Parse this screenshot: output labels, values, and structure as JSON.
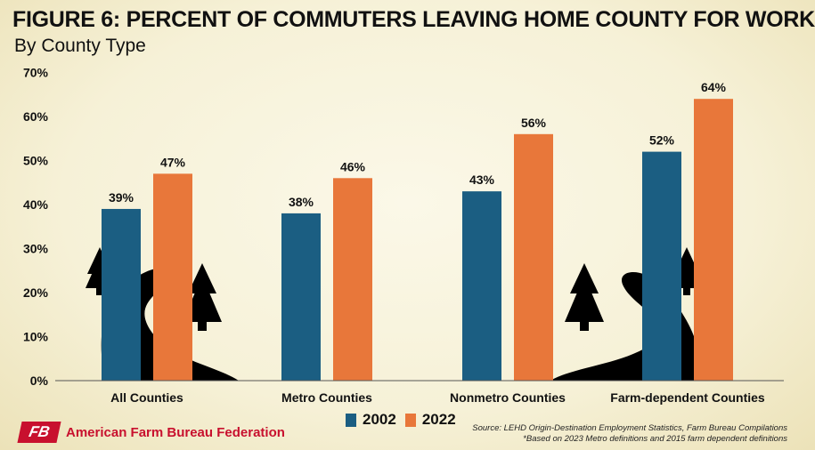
{
  "header": {
    "title": "FIGURE 6: PERCENT OF COMMUTERS LEAVING HOME COUNTY FOR WORK",
    "subtitle": "By County Type"
  },
  "chart_data": {
    "type": "bar",
    "categories": [
      "All Counties",
      "Metro Counties",
      "Nonmetro Counties",
      "Farm-dependent Counties"
    ],
    "series": [
      {
        "name": "2002",
        "values": [
          39,
          38,
          43,
          52
        ],
        "labels": [
          "39%",
          "38%",
          "43%",
          "52%"
        ],
        "color": "#1b5e82"
      },
      {
        "name": "2022",
        "values": [
          47,
          46,
          56,
          64
        ],
        "labels": [
          "47%",
          "46%",
          "56%",
          "64%"
        ],
        "color": "#e8773a"
      }
    ],
    "yticks": [
      "0%",
      "10%",
      "20%",
      "30%",
      "40%",
      "50%",
      "60%",
      "70%"
    ],
    "ylim": [
      0,
      70
    ],
    "grid": false,
    "legend_position": "bottom"
  },
  "footer": {
    "source_line1": "Source: LEHD Origin-Destination Employment Statistics, Farm Bureau Compilations",
    "source_line2": "*Based on 2023 Metro definitions and 2015 farm dependent definitions",
    "brand_logo": "FB",
    "brand_name": "American Farm Bureau Federation"
  },
  "decorations": {
    "tree_icon": "pine-tree-icon",
    "road_icon": "winding-road-icon"
  }
}
